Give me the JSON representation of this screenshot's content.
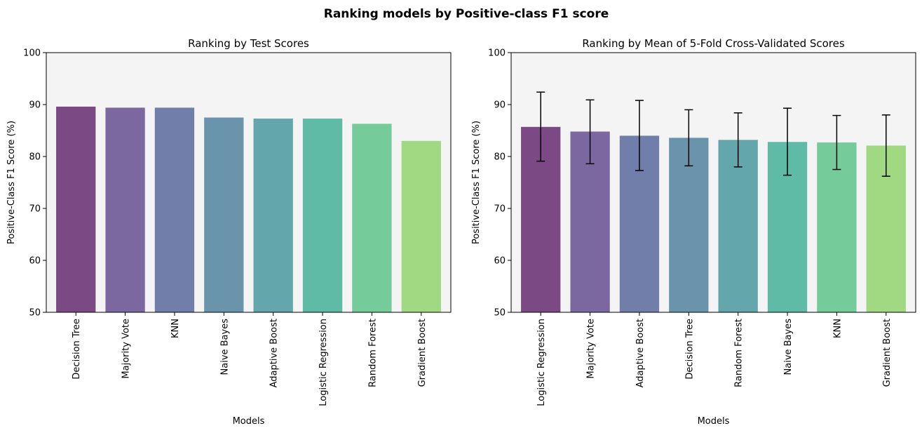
{
  "suptitle": "Ranking models by Positive-class F1 score",
  "chart_data": [
    {
      "type": "bar",
      "title": "Ranking by Test Scores",
      "xlabel": "Models",
      "ylabel": "Positive-Class F1 Score (%)",
      "ylim": [
        50,
        100
      ],
      "yticks": [
        50,
        60,
        70,
        80,
        90,
        100
      ],
      "grid": false,
      "background": "#f4f4f4",
      "categories": [
        "Decision Tree",
        "Majority Vote",
        "KNN",
        "Naive Bayes",
        "Adaptive Boost",
        "Logistic Regression",
        "Random Forest",
        "Gradient Boost"
      ],
      "values": [
        89.6,
        89.4,
        89.4,
        87.5,
        87.3,
        87.3,
        86.3,
        83.0
      ],
      "colors": [
        "#7b4984",
        "#7b68a0",
        "#717ea9",
        "#6994ab",
        "#63a7ad",
        "#5fbaa6",
        "#75cc9a",
        "#a0d981"
      ]
    },
    {
      "type": "bar",
      "title": "Ranking by Mean of 5-Fold Cross-Validated Scores",
      "xlabel": "Models",
      "ylabel": "Positive-Class F1 Score (%)",
      "ylim": [
        50,
        100
      ],
      "yticks": [
        50,
        60,
        70,
        80,
        90,
        100
      ],
      "grid": false,
      "background": "#f4f4f4",
      "categories": [
        "Logistic Regression",
        "Majority Vote",
        "Adaptive Boost",
        "Decision Tree",
        "Random Forest",
        "Naive Bayes",
        "KNN",
        "Gradient Boost"
      ],
      "values": [
        85.7,
        84.8,
        84.0,
        83.6,
        83.2,
        82.8,
        82.7,
        82.1
      ],
      "error_low": [
        79.1,
        78.6,
        77.3,
        78.2,
        78.0,
        76.4,
        77.5,
        76.2
      ],
      "error_high": [
        92.4,
        90.9,
        90.8,
        89.0,
        88.4,
        89.3,
        87.9,
        88.0
      ],
      "colors": [
        "#7b4984",
        "#7b68a0",
        "#717ea9",
        "#6994ab",
        "#63a7ad",
        "#5fbaa6",
        "#75cc9a",
        "#a0d981"
      ]
    }
  ]
}
